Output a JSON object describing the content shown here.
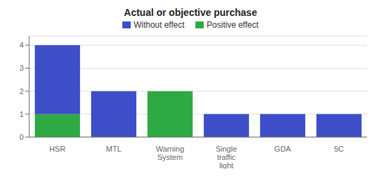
{
  "chart_data": {
    "type": "bar",
    "title": "Actual or objective purchase",
    "categories": [
      "HSR",
      "MTL",
      "Warning\nSystem",
      "Single\ntraffic\nlight",
      "GDA",
      "5C"
    ],
    "series": [
      {
        "name": "Positive effect",
        "color": "#2eaa44",
        "values": [
          1,
          0,
          2,
          0,
          0,
          0
        ]
      },
      {
        "name": "Without effect",
        "color": "#3d4ec8",
        "values": [
          3,
          2,
          0,
          1,
          1,
          1
        ]
      }
    ],
    "stacked": true,
    "ylim": [
      0,
      4.4
    ],
    "yticks": [
      0,
      1,
      2,
      3,
      4
    ],
    "grid": true,
    "legend": "top"
  }
}
